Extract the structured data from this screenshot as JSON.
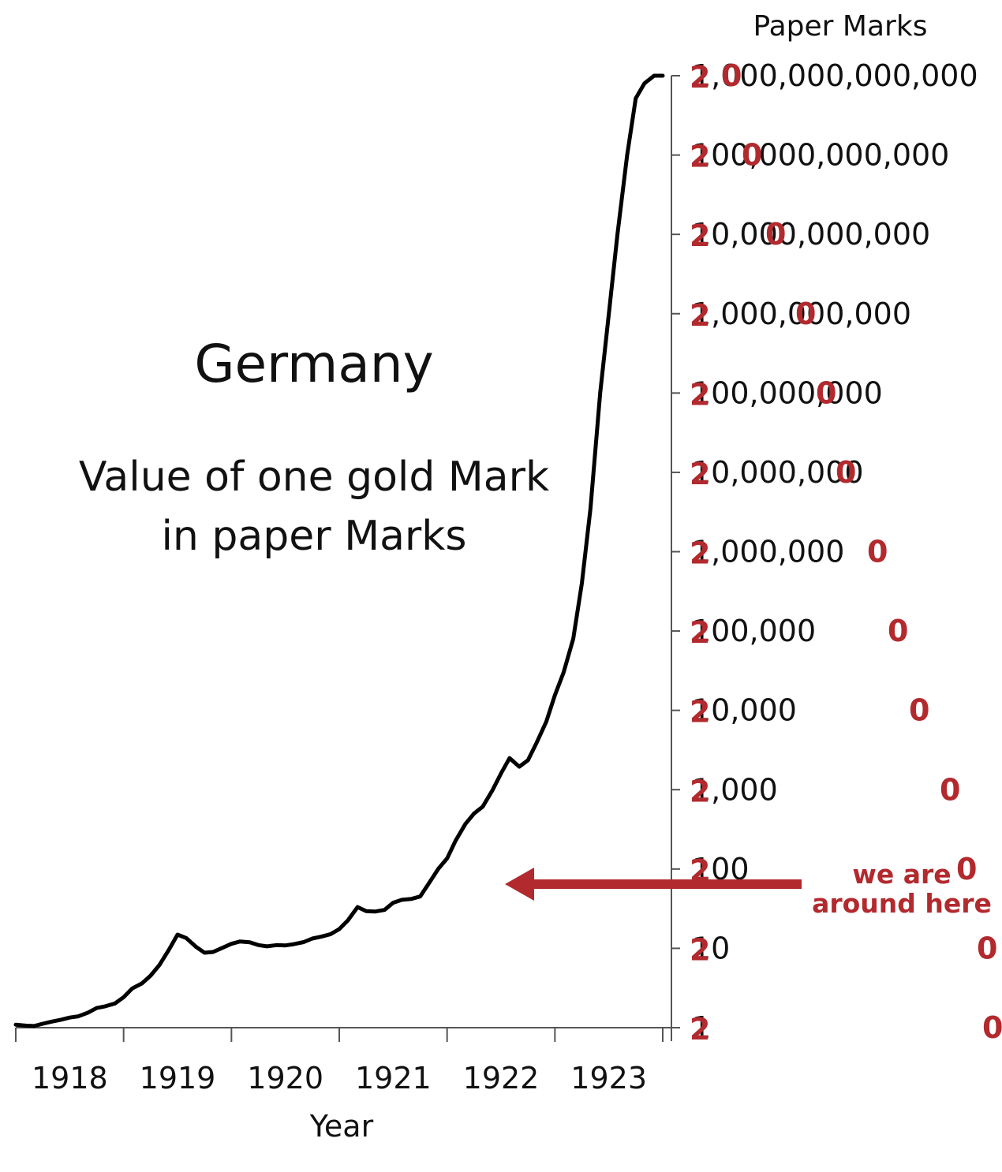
{
  "chart_data": {
    "type": "line",
    "title": "Germany",
    "subtitle_lines": [
      "Value of one gold Mark",
      "in paper Marks"
    ],
    "xlabel": "Year",
    "ylabel": "Paper Marks",
    "y_scale": "log",
    "ylim": [
      1,
      1000000000000
    ],
    "xlim": [
      1917.5,
      1923.5
    ],
    "grid": false,
    "x_ticks": [
      {
        "value": 1918,
        "label": "1918"
      },
      {
        "value": 1919,
        "label": "1919"
      },
      {
        "value": 1920,
        "label": "1920"
      },
      {
        "value": 1921,
        "label": "1921"
      },
      {
        "value": 1922,
        "label": "1922"
      },
      {
        "value": 1923,
        "label": "1923"
      }
    ],
    "y_ticks": [
      {
        "value": 1,
        "label": "1"
      },
      {
        "value": 10,
        "label": "10"
      },
      {
        "value": 100,
        "label": "100"
      },
      {
        "value": 1000,
        "label": "1,000"
      },
      {
        "value": 10000,
        "label": "10,000"
      },
      {
        "value": 100000,
        "label": "100,000"
      },
      {
        "value": 1000000,
        "label": "1,000,000"
      },
      {
        "value": 10000000,
        "label": "10,000,000"
      },
      {
        "value": 100000000,
        "label": "100,000,000"
      },
      {
        "value": 1000000000,
        "label": "1,000,000,000"
      },
      {
        "value": 10000000000,
        "label": "10,000,000,000"
      },
      {
        "value": 100000000000,
        "label": "100,000,000,000"
      },
      {
        "value": 1000000000000,
        "label": "1,000,000,000,000"
      }
    ],
    "series": [
      {
        "color": "#000000",
        "x": [
          1917.5,
          1917.6,
          1917.67,
          1917.75,
          1917.83,
          1917.92,
          1918.0,
          1918.08,
          1918.17,
          1918.25,
          1918.33,
          1918.42,
          1918.5,
          1918.58,
          1918.67,
          1918.75,
          1918.83,
          1918.92,
          1919.0,
          1919.08,
          1919.17,
          1919.25,
          1919.33,
          1919.42,
          1919.5,
          1919.58,
          1919.67,
          1919.75,
          1919.83,
          1919.92,
          1920.0,
          1920.08,
          1920.17,
          1920.25,
          1920.33,
          1920.42,
          1920.5,
          1920.58,
          1920.67,
          1920.75,
          1920.83,
          1920.92,
          1921.0,
          1921.08,
          1921.17,
          1921.25,
          1921.33,
          1921.42,
          1921.5,
          1921.58,
          1921.67,
          1921.75,
          1921.83,
          1921.92,
          1922.0,
          1922.08,
          1922.17,
          1922.25,
          1922.33,
          1922.42,
          1922.5,
          1922.58,
          1922.67,
          1922.75,
          1922.83,
          1922.92,
          1923.0,
          1923.08,
          1923.17,
          1923.25,
          1923.33,
          1923.42,
          1923.5
        ],
        "values": [
          1.09,
          1.06,
          1.05,
          1.12,
          1.19,
          1.26,
          1.34,
          1.39,
          1.55,
          1.77,
          1.86,
          2.02,
          2.42,
          3.12,
          3.61,
          4.52,
          6.12,
          9.6,
          14.9,
          13.5,
          10.5,
          8.8,
          9.0,
          10.2,
          11.4,
          12.2,
          11.9,
          11.0,
          10.6,
          11.0,
          10.9,
          11.3,
          12.0,
          13.3,
          14.0,
          15.1,
          17.5,
          22.5,
          33.1,
          29.4,
          29.1,
          30.5,
          37.6,
          40.9,
          42.0,
          45.0,
          65.5,
          100.9,
          136.0,
          229.0,
          370.0,
          500.0,
          610.0,
          980.0,
          1600.0,
          2500.0,
          1950.0,
          2350.0,
          3900.0,
          7200.0,
          15500.0,
          30000.0,
          80000.0,
          400000.0,
          3500000.0,
          100000000.0,
          1000000000.0,
          10000000000.0,
          100000000000.0,
          520000000000.0,
          800000000000.0,
          1000000000000.0,
          1000000000000.0
        ]
      }
    ],
    "annotations": {
      "red_labels": [
        "2",
        "2",
        "2",
        "2",
        "2",
        "2",
        "2",
        "2",
        "2",
        "2",
        "2",
        "2",
        "2"
      ],
      "red_trailing": [
        "0",
        "0",
        "0",
        "0",
        "0",
        "0",
        "0",
        "0",
        "0",
        "0",
        "0",
        "0",
        "0"
      ],
      "arrow_text_lines": [
        "we are",
        "around here"
      ],
      "arrow_color": "#b22a2e"
    }
  }
}
